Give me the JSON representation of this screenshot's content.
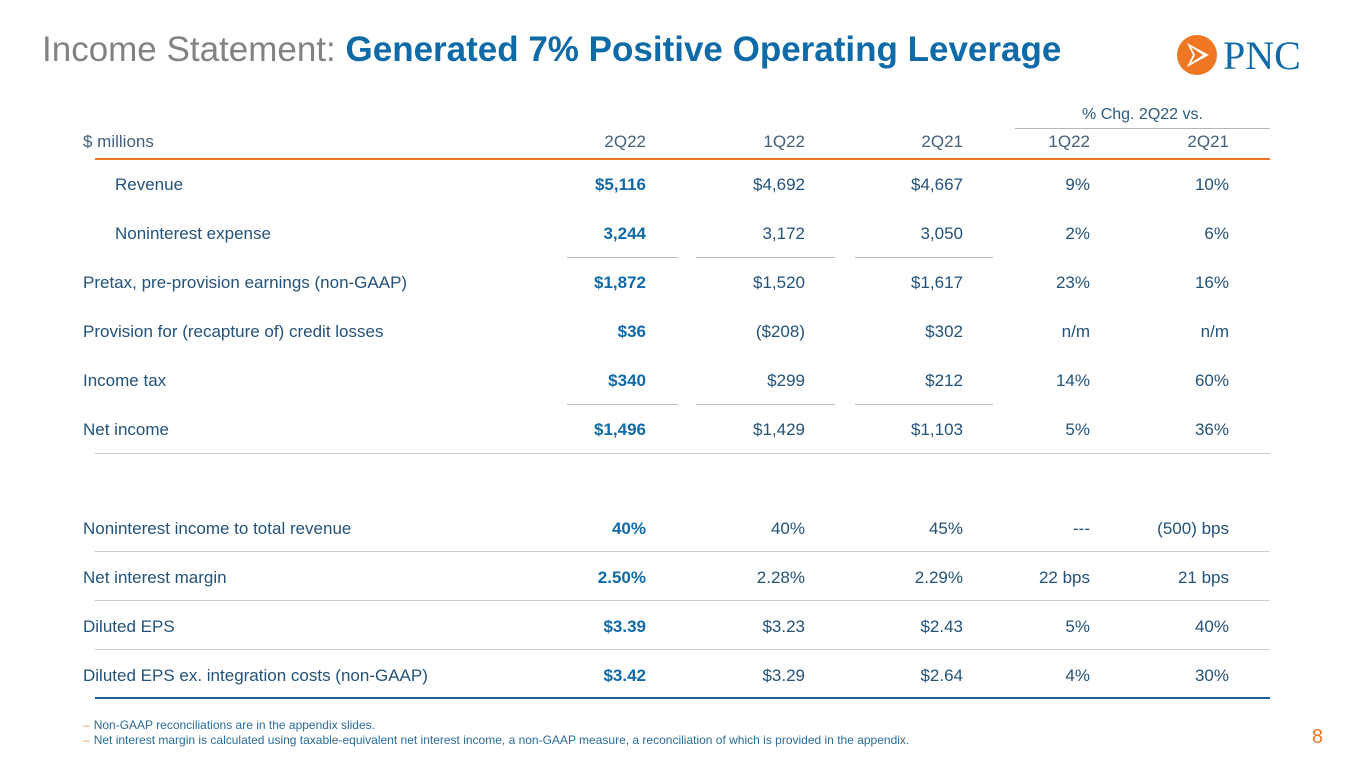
{
  "title": {
    "prefix": "Income Statement:",
    "main": "Generated 7% Positive Operating Leverage"
  },
  "logo": {
    "text": "PNC"
  },
  "colors": {
    "blue": "#0f6aa8",
    "orange": "#ef7622",
    "gray": "#808285"
  },
  "table": {
    "group_header": "% Chg. 2Q22 vs.",
    "columns": [
      "$ millions",
      "2Q22",
      "1Q22",
      "2Q21",
      "1Q22",
      "2Q21"
    ],
    "rows": [
      {
        "label": "Revenue",
        "indent": true,
        "values": [
          "$5,116",
          "$4,692",
          "$4,667",
          "9%",
          "10%"
        ]
      },
      {
        "label": "Noninterest expense",
        "indent": true,
        "values": [
          "3,244",
          "3,172",
          "3,050",
          "2%",
          "6%"
        ]
      },
      {
        "label": "Pretax, pre-provision earnings (non-GAAP)",
        "indent": false,
        "values": [
          "$1,872",
          "$1,520",
          "$1,617",
          "23%",
          "16%"
        ]
      },
      {
        "label": "Provision for (recapture of) credit losses",
        "indent": false,
        "values": [
          "$36",
          "($208)",
          "$302",
          "n/m",
          "n/m"
        ]
      },
      {
        "label": "Income tax",
        "indent": false,
        "values": [
          "$340",
          "$299",
          "$212",
          "14%",
          "60%"
        ]
      },
      {
        "label": "Net income",
        "indent": false,
        "values": [
          "$1,496",
          "$1,429",
          "$1,103",
          "5%",
          "36%"
        ]
      },
      {
        "label": "Noninterest income to total revenue",
        "indent": false,
        "values": [
          "40%",
          "40%",
          "45%",
          "---",
          "(500) bps"
        ]
      },
      {
        "label": "Net interest margin",
        "indent": false,
        "values": [
          "2.50%",
          "2.28%",
          "2.29%",
          "22 bps",
          "21 bps"
        ]
      },
      {
        "label": "Diluted EPS",
        "indent": false,
        "values": [
          "$3.39",
          "$3.23",
          "$2.43",
          "5%",
          "40%"
        ]
      },
      {
        "label": "Diluted EPS ex. integration costs (non-GAAP)",
        "indent": false,
        "values": [
          "$3.42",
          "$3.29",
          "$2.64",
          "4%",
          "30%"
        ]
      }
    ]
  },
  "footnotes": [
    "Non-GAAP reconciliations are in the appendix slides.",
    "Net interest margin is calculated using taxable-equivalent net interest income, a non-GAAP measure, a reconciliation of which is provided in the appendix."
  ],
  "page_number": "8"
}
